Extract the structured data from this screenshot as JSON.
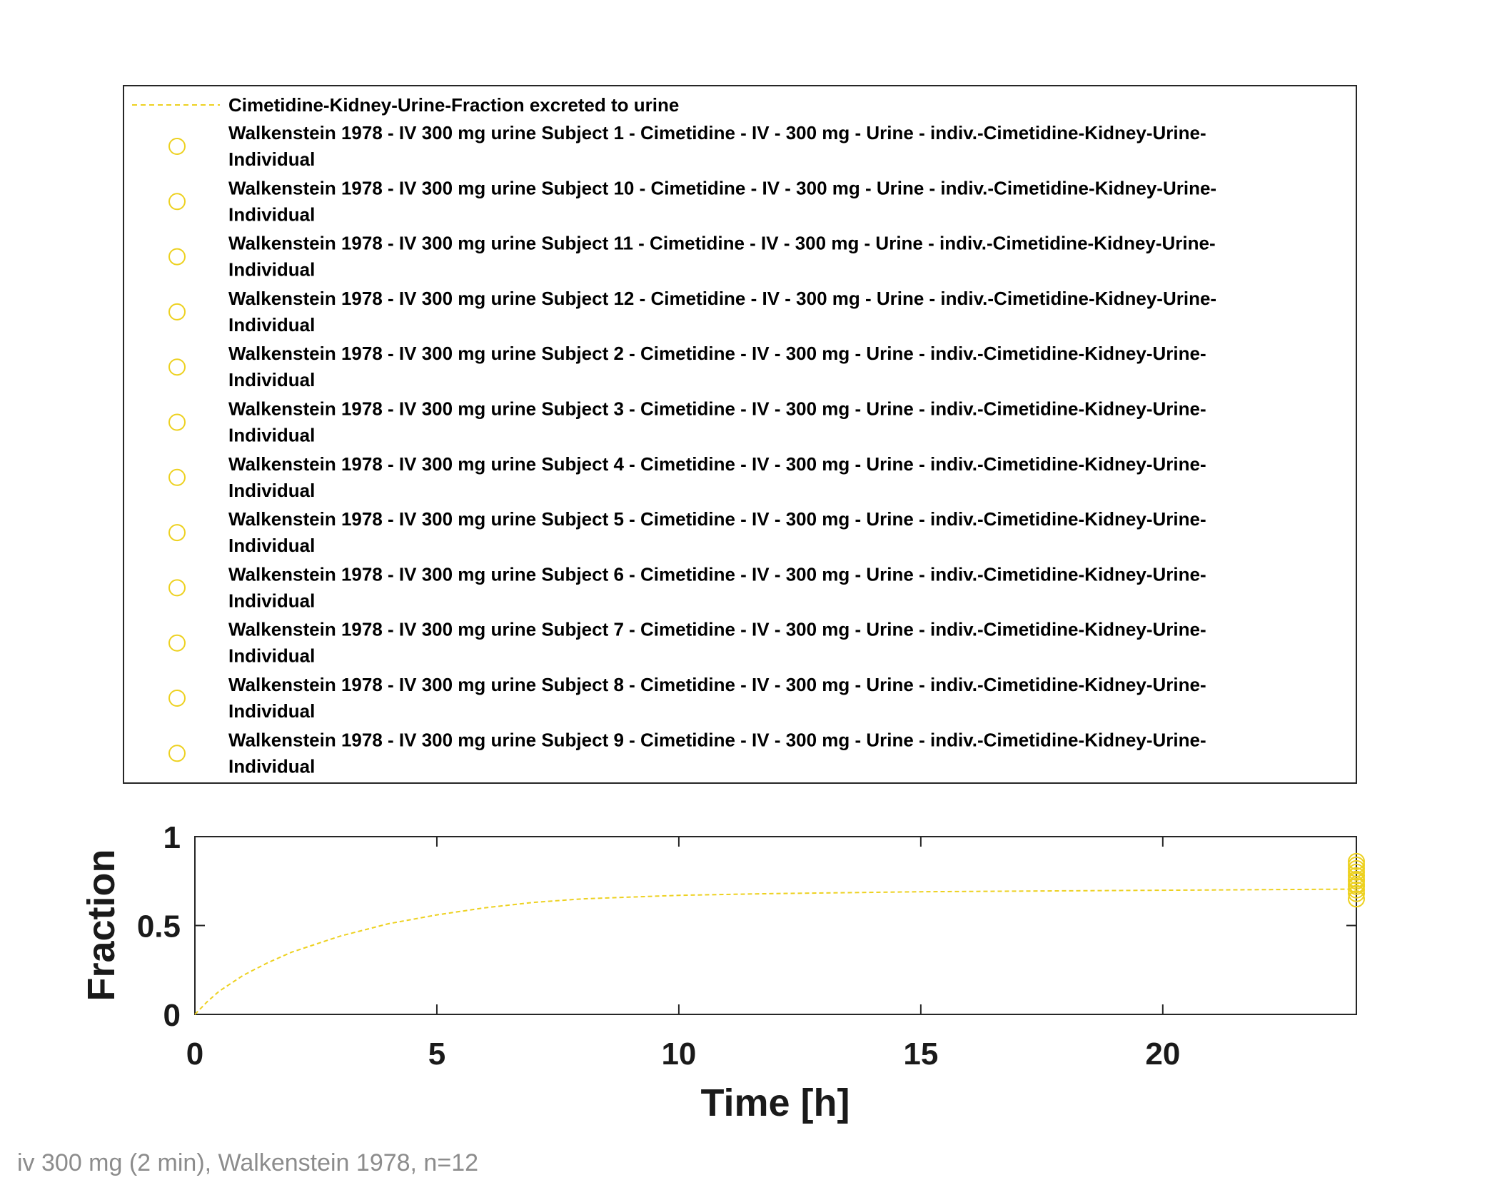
{
  "colors": {
    "series": "#edd120",
    "axis": "#262626",
    "caption": "#8c8c8c"
  },
  "legend": {
    "line_entry": "Cimetidine-Kidney-Urine-Fraction excreted to urine",
    "marker_entries": [
      [
        "Walkenstein 1978 - IV 300 mg urine Subject 1 - Cimetidine - IV - 300 mg - Urine - indiv.-Cimetidine-Kidney-Urine-",
        "Individual"
      ],
      [
        "Walkenstein 1978 - IV 300 mg urine Subject 10 - Cimetidine - IV - 300 mg - Urine - indiv.-Cimetidine-Kidney-Urine-",
        "Individual"
      ],
      [
        "Walkenstein 1978 - IV 300 mg urine Subject 11 - Cimetidine - IV - 300 mg - Urine - indiv.-Cimetidine-Kidney-Urine-",
        "Individual"
      ],
      [
        "Walkenstein 1978 - IV 300 mg urine Subject 12 - Cimetidine - IV - 300 mg - Urine - indiv.-Cimetidine-Kidney-Urine-",
        "Individual"
      ],
      [
        "Walkenstein 1978 - IV 300 mg urine Subject 2 - Cimetidine - IV - 300 mg - Urine - indiv.-Cimetidine-Kidney-Urine-",
        "Individual"
      ],
      [
        "Walkenstein 1978 - IV 300 mg urine Subject 3 - Cimetidine - IV - 300 mg - Urine - indiv.-Cimetidine-Kidney-Urine-",
        "Individual"
      ],
      [
        "Walkenstein 1978 - IV 300 mg urine Subject 4 - Cimetidine - IV - 300 mg - Urine - indiv.-Cimetidine-Kidney-Urine-",
        "Individual"
      ],
      [
        "Walkenstein 1978 - IV 300 mg urine Subject 5 - Cimetidine - IV - 300 mg - Urine - indiv.-Cimetidine-Kidney-Urine-",
        "Individual"
      ],
      [
        "Walkenstein 1978 - IV 300 mg urine Subject 6 - Cimetidine - IV - 300 mg - Urine - indiv.-Cimetidine-Kidney-Urine-",
        "Individual"
      ],
      [
        "Walkenstein 1978 - IV 300 mg urine Subject 7 - Cimetidine - IV - 300 mg - Urine - indiv.-Cimetidine-Kidney-Urine-",
        "Individual"
      ],
      [
        "Walkenstein 1978 - IV 300 mg urine Subject 8 - Cimetidine - IV - 300 mg - Urine - indiv.-Cimetidine-Kidney-Urine-",
        "Individual"
      ],
      [
        "Walkenstein 1978 - IV 300 mg urine Subject 9 - Cimetidine - IV - 300 mg - Urine - indiv.-Cimetidine-Kidney-Urine-",
        "Individual"
      ]
    ]
  },
  "caption": "iv 300 mg (2 min), Walkenstein 1978, n=12",
  "chart_data": {
    "type": "line",
    "title": "",
    "xlabel": "Time [h]",
    "ylabel": "Fraction",
    "xlim": [
      0,
      24
    ],
    "ylim": [
      0,
      1
    ],
    "xticks": [
      0,
      5,
      10,
      15,
      20
    ],
    "yticks": [
      0,
      0.5,
      1
    ],
    "grid": false,
    "legend_position": "top",
    "series": [
      {
        "name": "Cimetidine-Kidney-Urine-Fraction excreted to urine",
        "style": "dashed-line",
        "x": [
          0,
          0.25,
          0.5,
          1,
          1.5,
          2,
          3,
          4,
          5,
          6,
          7,
          8,
          10,
          12,
          15,
          18,
          21,
          24
        ],
        "y": [
          0,
          0.07,
          0.13,
          0.22,
          0.29,
          0.35,
          0.44,
          0.51,
          0.56,
          0.6,
          0.63,
          0.65,
          0.67,
          0.68,
          0.69,
          0.695,
          0.7,
          0.705
        ]
      },
      {
        "name": "Walkenstein 1978 - IV 300 mg urine Subject 1-12 (individual)",
        "style": "open-circle",
        "x": [
          24,
          24,
          24,
          24,
          24,
          24,
          24,
          24,
          24,
          24,
          24,
          24
        ],
        "y": [
          0.65,
          0.68,
          0.7,
          0.72,
          0.73,
          0.75,
          0.76,
          0.78,
          0.8,
          0.82,
          0.84,
          0.86
        ]
      }
    ]
  }
}
